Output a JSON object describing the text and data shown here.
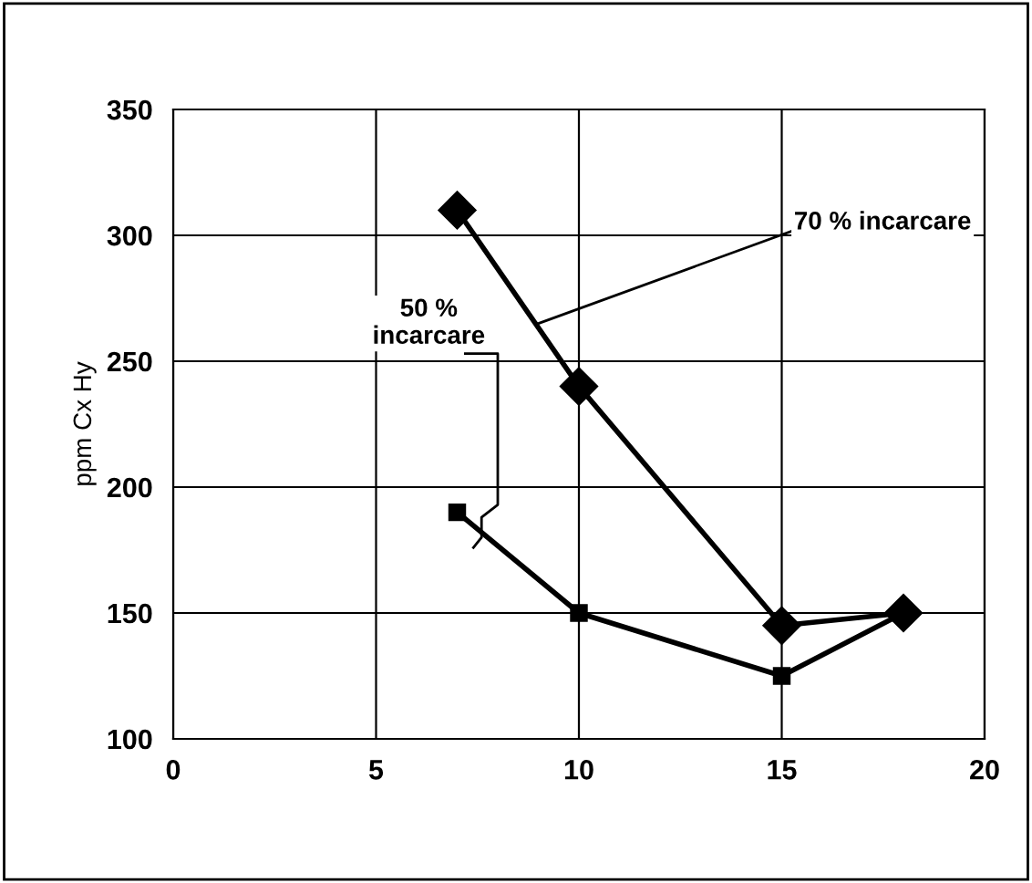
{
  "chart_data": {
    "type": "line",
    "ylabel": "ppm Cx Hy",
    "x": [
      7,
      10,
      15,
      18
    ],
    "series": [
      {
        "color": "#000000",
        "values": [
          310,
          240,
          145,
          150
        ],
        "marker": "diamond"
      },
      {
        "color": "#000000",
        "values": [
          190,
          150,
          125,
          150
        ],
        "marker": "square"
      }
    ],
    "xlim": [
      0,
      20
    ],
    "xticks": [
      0,
      5,
      10,
      15,
      20
    ],
    "ylim": [
      100,
      350
    ],
    "yticks": [
      100,
      150,
      200,
      250,
      300,
      350
    ],
    "grid": true,
    "legend": false,
    "line_style": "solid",
    "annotations": [
      {
        "text": "70 % incarcare",
        "x": 9,
        "y": 265
      },
      {
        "text": "50 %\nincarcare",
        "x": 7.6,
        "y": 180
      }
    ]
  }
}
